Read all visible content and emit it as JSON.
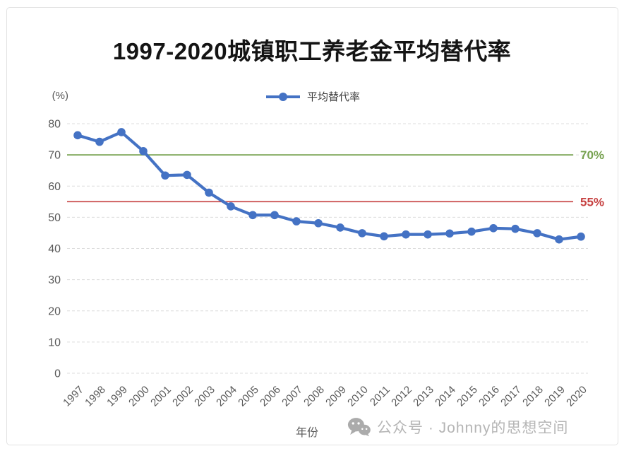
{
  "chart_data": {
    "type": "line",
    "title": "1997-2020城镇职工养老金平均替代率",
    "xlabel": "年份",
    "y_unit_label": "(%)",
    "ylim": [
      0,
      80
    ],
    "ytick_step": 10,
    "grid": "dashed",
    "legend_position": "top-center",
    "categories": [
      "1997",
      "1998",
      "1999",
      "2000",
      "2001",
      "2002",
      "2003",
      "2004",
      "2005",
      "2006",
      "2007",
      "2008",
      "2009",
      "2010",
      "2011",
      "2012",
      "2013",
      "2014",
      "2015",
      "2016",
      "2017",
      "2018",
      "2019",
      "2020"
    ],
    "series": [
      {
        "name": "平均替代率",
        "color": "#4472C4",
        "marker": "circle",
        "values": [
          76.3,
          74.2,
          77.3,
          71.2,
          63.4,
          63.6,
          57.9,
          53.5,
          50.7,
          50.7,
          48.7,
          48.1,
          46.7,
          44.9,
          43.9,
          44.5,
          44.5,
          44.8,
          45.4,
          46.5,
          46.3,
          44.9,
          42.9,
          43.8
        ]
      }
    ],
    "ref_lines": [
      {
        "label": "70%",
        "value": 70,
        "color": "#76A14F"
      },
      {
        "label": "55%",
        "value": 55,
        "color": "#C64040"
      }
    ],
    "colors": {
      "grid": "#dcdcdc",
      "axis_text": "#595959"
    }
  },
  "footer": {
    "watermark": "公众号 · Johnny的思想空间"
  }
}
